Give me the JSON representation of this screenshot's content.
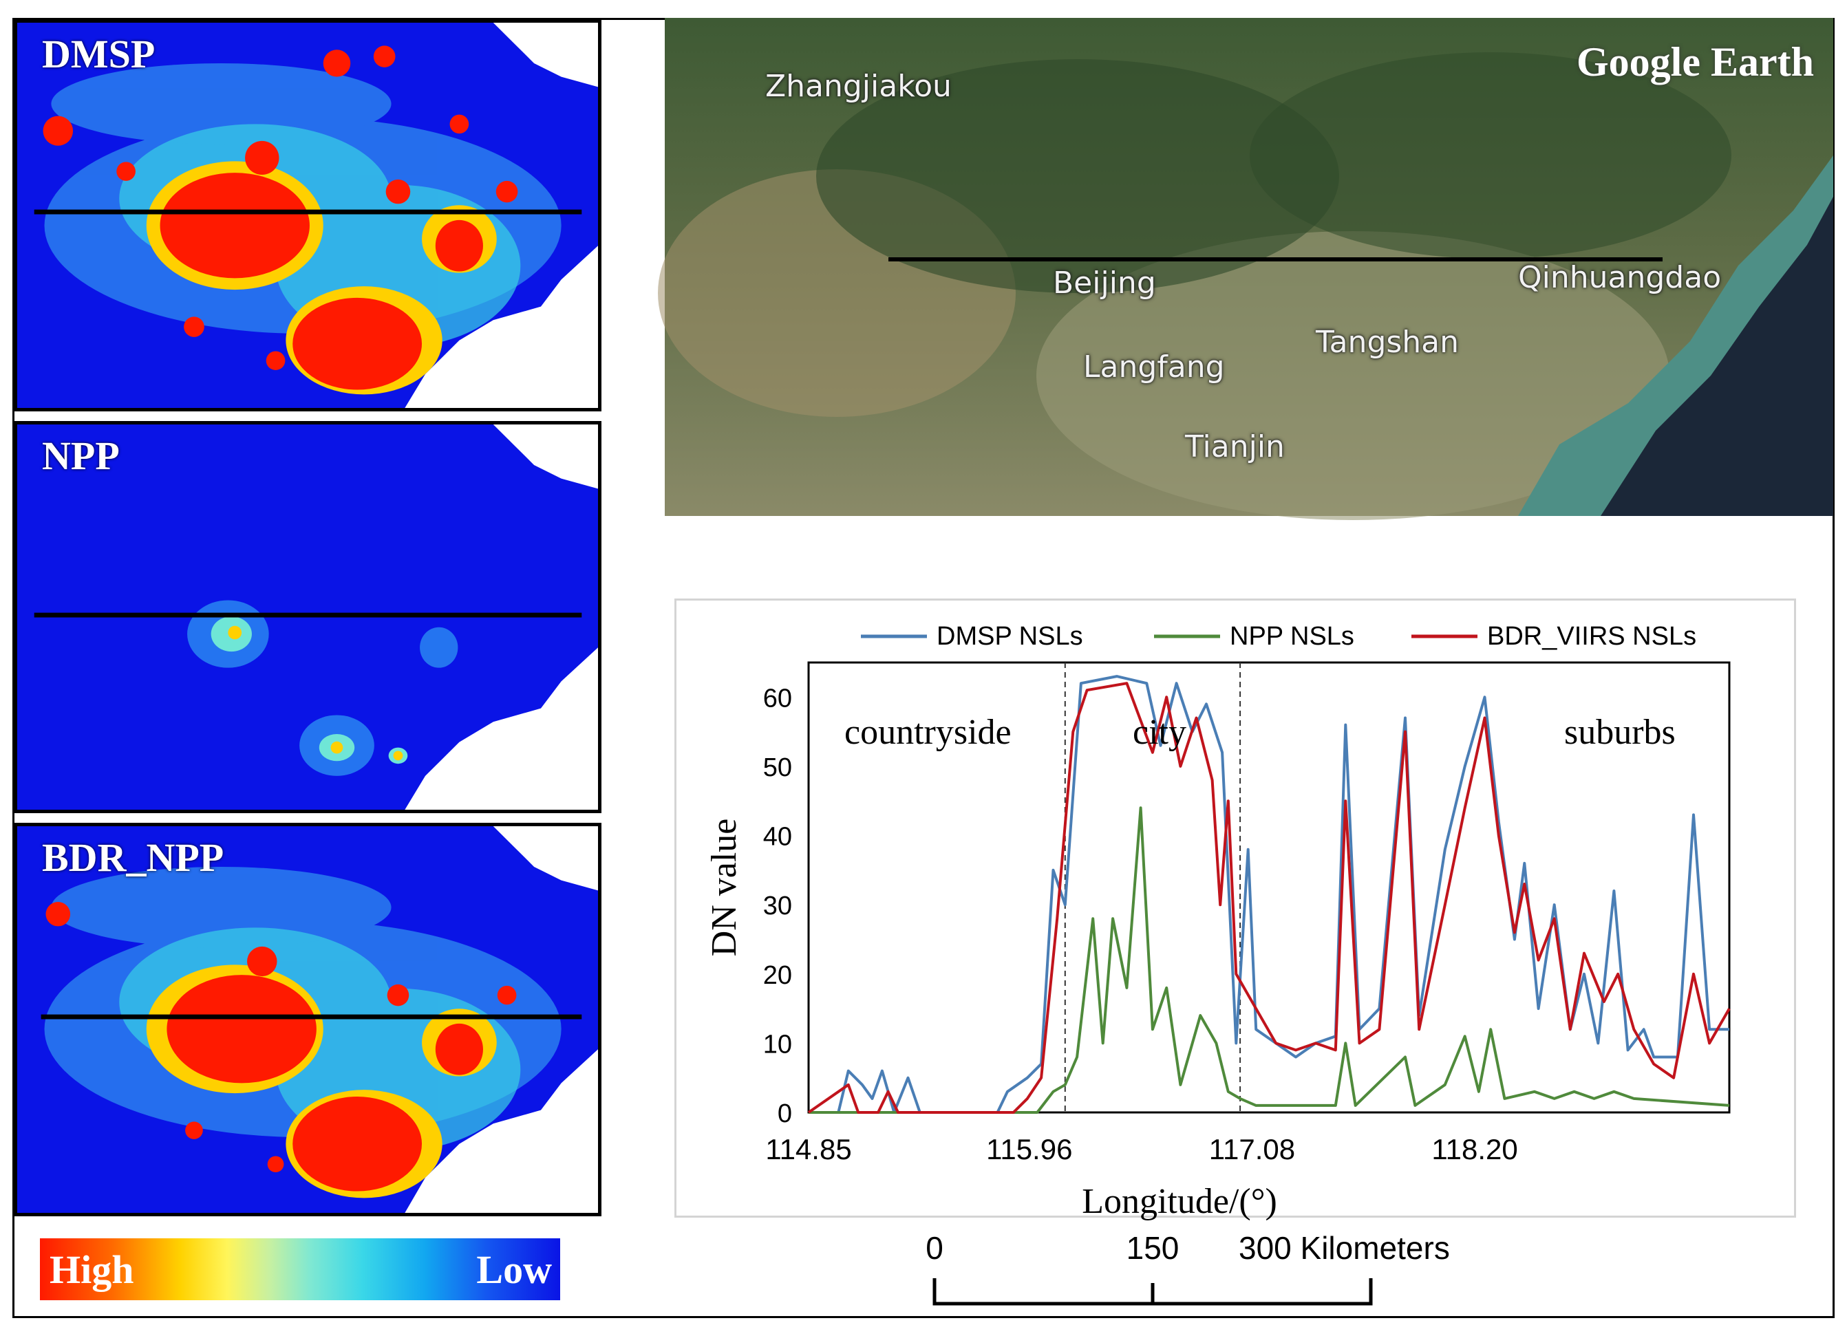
{
  "panels": [
    {
      "title": "DMSP"
    },
    {
      "title": "NPP"
    },
    {
      "title": "BDR_NPP"
    }
  ],
  "legend": {
    "high": "High",
    "low": "Low"
  },
  "google_earth": {
    "label": "Google Earth",
    "cities": [
      "Zhangjiakou",
      "Beijing",
      "Qinhuangdao",
      "Langfang",
      "Tangshan",
      "Tianjin"
    ]
  },
  "chart_data": {
    "type": "line",
    "xlabel": "Longitude/(°)",
    "ylabel": "DN value",
    "xlim": [
      114.85,
      119.48
    ],
    "ylim": [
      0,
      65
    ],
    "x_ticks": [
      "114.85",
      "115.96",
      "117.08",
      "118.20"
    ],
    "x_tick_values": [
      114.85,
      115.96,
      117.08,
      118.2
    ],
    "y_ticks": [
      0,
      10,
      20,
      30,
      40,
      50,
      60
    ],
    "region_boundaries": [
      116.14,
      117.02
    ],
    "annotations": [
      "countryside",
      "city",
      "suburbs"
    ],
    "series": [
      {
        "name": "DMSP NSLs",
        "color": "#4a7eb5",
        "points": [
          [
            114.85,
            0
          ],
          [
            115.0,
            0
          ],
          [
            115.05,
            6
          ],
          [
            115.12,
            4
          ],
          [
            115.17,
            2
          ],
          [
            115.22,
            6
          ],
          [
            115.28,
            0
          ],
          [
            115.35,
            5
          ],
          [
            115.41,
            0
          ],
          [
            115.8,
            0
          ],
          [
            115.85,
            3
          ],
          [
            115.95,
            5
          ],
          [
            116.02,
            7
          ],
          [
            116.08,
            35
          ],
          [
            116.14,
            30
          ],
          [
            116.22,
            62
          ],
          [
            116.4,
            63
          ],
          [
            116.55,
            62
          ],
          [
            116.62,
            53
          ],
          [
            116.7,
            62
          ],
          [
            116.78,
            55
          ],
          [
            116.85,
            59
          ],
          [
            116.93,
            52
          ],
          [
            117.0,
            10
          ],
          [
            117.06,
            38
          ],
          [
            117.1,
            12
          ],
          [
            117.2,
            10
          ],
          [
            117.3,
            8
          ],
          [
            117.4,
            10
          ],
          [
            117.5,
            11
          ],
          [
            117.55,
            56
          ],
          [
            117.62,
            12
          ],
          [
            117.72,
            15
          ],
          [
            117.85,
            57
          ],
          [
            117.92,
            14
          ],
          [
            118.05,
            38
          ],
          [
            118.15,
            50
          ],
          [
            118.25,
            60
          ],
          [
            118.32,
            42
          ],
          [
            118.4,
            25
          ],
          [
            118.45,
            36
          ],
          [
            118.52,
            15
          ],
          [
            118.6,
            30
          ],
          [
            118.68,
            12
          ],
          [
            118.75,
            20
          ],
          [
            118.82,
            10
          ],
          [
            118.9,
            32
          ],
          [
            118.97,
            9
          ],
          [
            119.05,
            12
          ],
          [
            119.1,
            8
          ],
          [
            119.22,
            8
          ],
          [
            119.3,
            43
          ],
          [
            119.38,
            12
          ],
          [
            119.48,
            12
          ]
        ]
      },
      {
        "name": "NPP NSLs",
        "color": "#4f8a3b",
        "points": [
          [
            114.85,
            0
          ],
          [
            116.0,
            0
          ],
          [
            116.08,
            3
          ],
          [
            116.14,
            4
          ],
          [
            116.2,
            8
          ],
          [
            116.28,
            28
          ],
          [
            116.33,
            10
          ],
          [
            116.38,
            28
          ],
          [
            116.45,
            18
          ],
          [
            116.52,
            44
          ],
          [
            116.58,
            12
          ],
          [
            116.65,
            18
          ],
          [
            116.72,
            4
          ],
          [
            116.82,
            14
          ],
          [
            116.9,
            10
          ],
          [
            116.96,
            3
          ],
          [
            117.02,
            2
          ],
          [
            117.1,
            1
          ],
          [
            117.5,
            1
          ],
          [
            117.55,
            10
          ],
          [
            117.6,
            1
          ],
          [
            117.85,
            8
          ],
          [
            117.9,
            1
          ],
          [
            118.05,
            4
          ],
          [
            118.15,
            11
          ],
          [
            118.22,
            3
          ],
          [
            118.28,
            12
          ],
          [
            118.35,
            2
          ],
          [
            118.5,
            3
          ],
          [
            118.6,
            2
          ],
          [
            118.7,
            3
          ],
          [
            118.8,
            2
          ],
          [
            118.9,
            3
          ],
          [
            119.0,
            2
          ],
          [
            119.48,
            1
          ]
        ]
      },
      {
        "name": "BDR_VIIRS NSLs",
        "color": "#c1141c",
        "points": [
          [
            114.85,
            0
          ],
          [
            115.05,
            4
          ],
          [
            115.1,
            0
          ],
          [
            115.2,
            0
          ],
          [
            115.25,
            3
          ],
          [
            115.3,
            0
          ],
          [
            115.88,
            0
          ],
          [
            115.95,
            2
          ],
          [
            116.02,
            5
          ],
          [
            116.1,
            28
          ],
          [
            116.18,
            55
          ],
          [
            116.25,
            61
          ],
          [
            116.45,
            62
          ],
          [
            116.58,
            52
          ],
          [
            116.65,
            60
          ],
          [
            116.72,
            50
          ],
          [
            116.8,
            57
          ],
          [
            116.88,
            48
          ],
          [
            116.92,
            30
          ],
          [
            116.96,
            45
          ],
          [
            117.0,
            20
          ],
          [
            117.1,
            15
          ],
          [
            117.2,
            10
          ],
          [
            117.3,
            9
          ],
          [
            117.4,
            10
          ],
          [
            117.5,
            9
          ],
          [
            117.55,
            45
          ],
          [
            117.62,
            10
          ],
          [
            117.72,
            12
          ],
          [
            117.85,
            55
          ],
          [
            117.92,
            12
          ],
          [
            118.05,
            30
          ],
          [
            118.15,
            44
          ],
          [
            118.25,
            57
          ],
          [
            118.32,
            40
          ],
          [
            118.4,
            26
          ],
          [
            118.45,
            33
          ],
          [
            118.52,
            22
          ],
          [
            118.6,
            28
          ],
          [
            118.68,
            12
          ],
          [
            118.75,
            23
          ],
          [
            118.85,
            16
          ],
          [
            118.92,
            20
          ],
          [
            119.0,
            12
          ],
          [
            119.1,
            7
          ],
          [
            119.2,
            5
          ],
          [
            119.3,
            20
          ],
          [
            119.38,
            10
          ],
          [
            119.48,
            15
          ]
        ]
      }
    ]
  },
  "scale_bar": {
    "ticks": [
      "0",
      "150",
      "300 Kilometers"
    ]
  }
}
